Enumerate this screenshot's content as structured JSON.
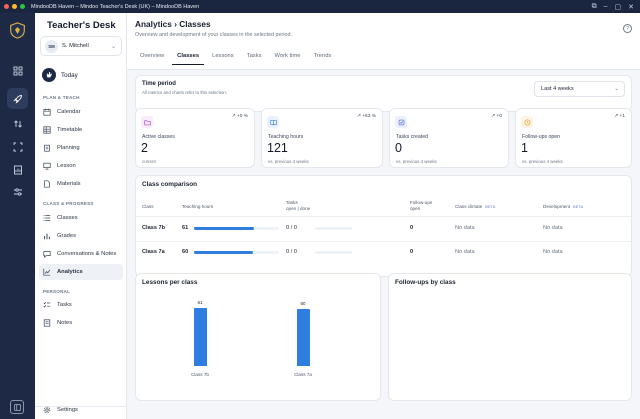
{
  "window": {
    "title": "MindooDB Haven – Mindoo Teacher's Desk (UK) – MindooDB Haven"
  },
  "brand": "Teacher's Desk",
  "user": {
    "initials": "SM",
    "name": "S. Mitchell"
  },
  "today_label": "Today",
  "sections": {
    "plan": "PLAN & TEACH",
    "class": "CLASS & PROGRESS",
    "personal": "PERSONAL"
  },
  "nav": {
    "calendar": "Calendar",
    "timetable": "Timetable",
    "planning": "Planning",
    "lesson": "Lesson",
    "materials": "Materials",
    "classes": "Classes",
    "grades": "Grades",
    "conversations": "Conversations & Notes",
    "analytics": "Analytics",
    "tasks": "Tasks",
    "notes": "Notes",
    "settings": "Settings"
  },
  "header": {
    "breadcrumb": "Analytics › Classes",
    "subtitle": "Overview and development of your classes in the selected period."
  },
  "tabs": [
    "Overview",
    "Classes",
    "Lessons",
    "Tasks",
    "Work time",
    "Trends"
  ],
  "time_period": {
    "title": "Time period",
    "subtitle": "All metrics and charts refer to this selection.",
    "selected": "Last 4 weeks"
  },
  "kpis": [
    {
      "label": "Active classes",
      "value": "2",
      "note": "current",
      "trend": "+0 %",
      "icon": "folder-icon",
      "color": "#b04bd6",
      "bg": "#f6ecfb"
    },
    {
      "label": "Teaching hours",
      "value": "121",
      "note": "vs. previous 4 weeks",
      "trend": "+63 %",
      "icon": "book-icon",
      "color": "#3d7fe0",
      "bg": "#eaf2fd"
    },
    {
      "label": "Tasks created",
      "value": "0",
      "note": "vs. previous 4 weeks",
      "trend": "+0",
      "icon": "check-square-icon",
      "color": "#4b63d6",
      "bg": "#ecf0fc"
    },
    {
      "label": "Follow-ups open",
      "value": "1",
      "note": "vs. previous 4 weeks",
      "trend": "+1",
      "icon": "clock-icon",
      "color": "#e59a23",
      "bg": "#fdf4e6"
    }
  ],
  "comparison": {
    "title": "Class comparison",
    "headers": {
      "class": "Class",
      "hours": "Teaching hours",
      "tasks": "Tasks",
      "tasks_sub": "open | done",
      "follow": "Follow-ups",
      "follow_sub": "open",
      "climate": "Class climate",
      "development": "Development",
      "beta": "BETA"
    },
    "rows": [
      {
        "class": "Class 7b",
        "hours": "61",
        "hours_value": 61,
        "tasks": "0 / 0",
        "follow": "0",
        "climate": "No data",
        "development": "No data"
      },
      {
        "class": "Class 7a",
        "hours": "60",
        "hours_value": 60,
        "tasks": "0 / 0",
        "follow": "0",
        "climate": "No data",
        "development": "No data"
      }
    ]
  },
  "lessons_per_class": {
    "title": "Lessons per class"
  },
  "followups": {
    "title": "Follow-ups by class"
  },
  "chart_data": {
    "type": "bar",
    "title": "Lessons per class",
    "categories": [
      "Class 7b",
      "Class 7a"
    ],
    "values": [
      61,
      60
    ],
    "ylim": [
      0,
      61
    ],
    "grid": false
  }
}
